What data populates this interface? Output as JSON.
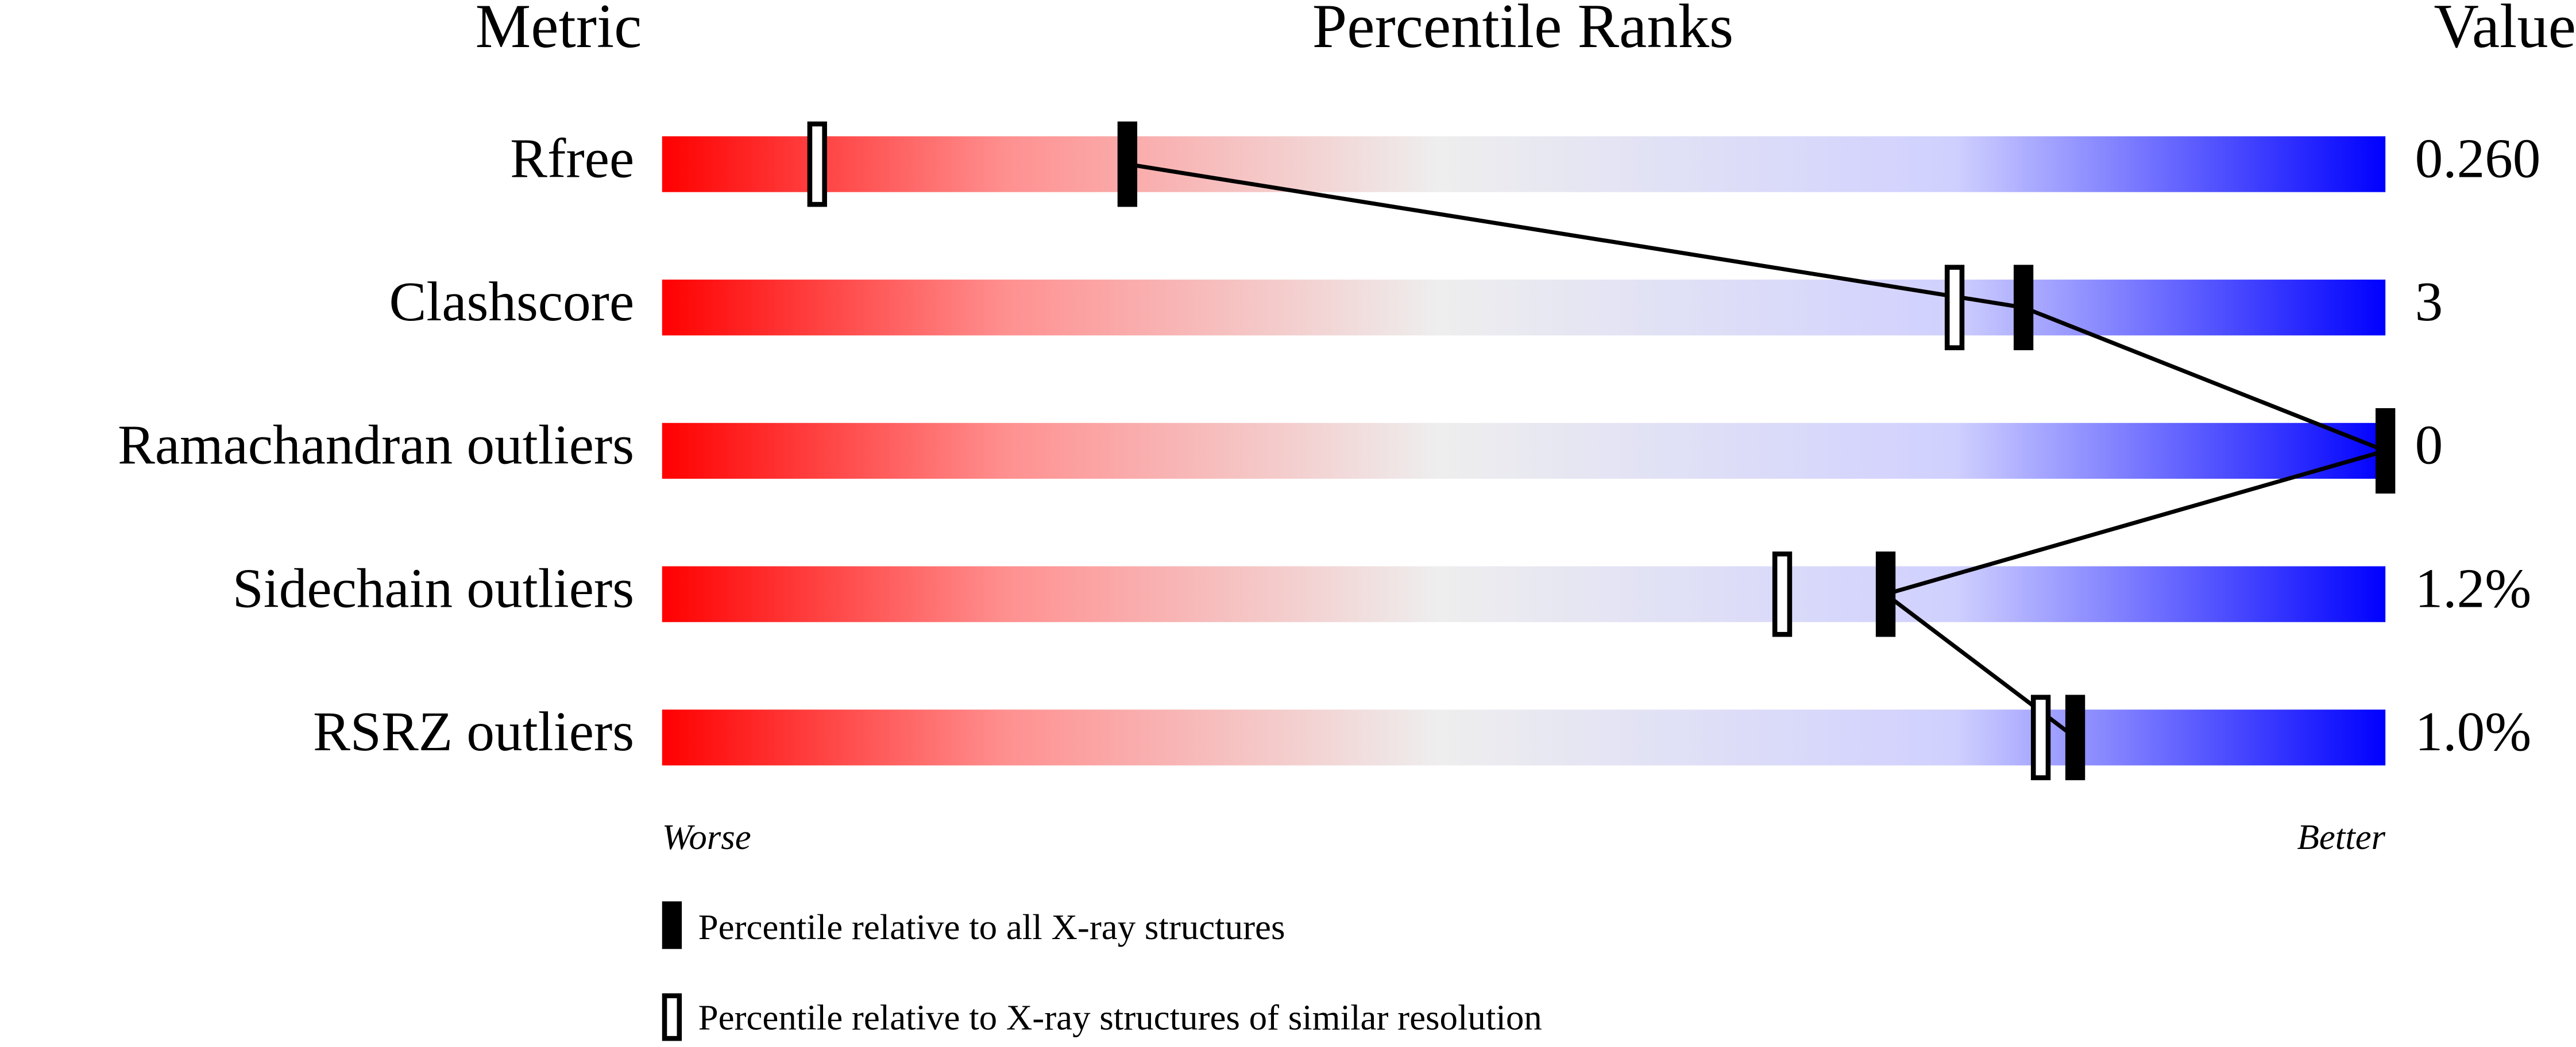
{
  "chart_data": {
    "type": "percentile",
    "headers": {
      "metric": "Metric",
      "ranks": "Percentile Ranks",
      "value": "Value"
    },
    "categories": [
      "Rfree",
      "Clashscore",
      "Ramachandran outliers",
      "Sidechain outliers",
      "RSRZ outliers"
    ],
    "value_labels": [
      "0.260",
      "3",
      "0",
      "1.2%",
      "1.0%"
    ],
    "series": [
      {
        "name": "Percentile relative to all X-ray structures",
        "color": "#000000",
        "values": [
          27,
          79,
          100,
          71,
          82
        ]
      },
      {
        "name": "Percentile relative to X-ray structures of similar resolution",
        "color": "#000000",
        "values": [
          9,
          75,
          null,
          65,
          80
        ]
      }
    ],
    "xlim": [
      0,
      100
    ],
    "low_label": "Worse",
    "high_label": "Better"
  }
}
